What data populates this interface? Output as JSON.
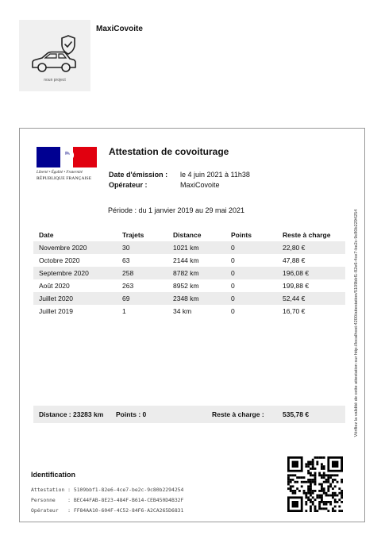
{
  "organization": {
    "name": "MaxiCovoite",
    "logo_icon": "car-shield-icon",
    "logo_caption": "noun project"
  },
  "header": {
    "devise": "Liberté • Égalité • Fraternité",
    "republique": "RÉPUBLIQUE FRANÇAISE",
    "title": "Attestation de covoiturage",
    "emission_label": "Date d'émission :",
    "emission_value": "le 4 juin 2021 à 11h38",
    "operateur_label": "Opérateur :",
    "operateur_value": "MaxiCovoite"
  },
  "periode": "Période : du 1 janvier 2019 au 29 mai 2021",
  "table": {
    "columns": [
      "Date",
      "Trajets",
      "Distance",
      "Points",
      "Reste à charge"
    ],
    "rows": [
      [
        "Novembre 2020",
        "30",
        "1021 km",
        "0",
        "22,80 €"
      ],
      [
        "Octobre 2020",
        "63",
        "2144 km",
        "0",
        "47,88 €"
      ],
      [
        "Septembre 2020",
        "258",
        "8782 km",
        "0",
        "196,08 €"
      ],
      [
        "Août 2020",
        "263",
        "8952 km",
        "0",
        "199,88 €"
      ],
      [
        "Juillet 2020",
        "69",
        "2348 km",
        "0",
        "52,44 €"
      ],
      [
        "Juillet 2019",
        "1",
        "34 km",
        "0",
        "16,70 €"
      ]
    ]
  },
  "totals": {
    "distance": "Distance : 23283 km",
    "points": "Points : 0",
    "reste_label": "Reste à charge :",
    "reste_value": "535,78 €"
  },
  "identification": {
    "title": "Identification",
    "rows": [
      "Attestation : 5109bbf1-82e6-4ce7-be2c-9c80b2294254",
      "Personne    : BEC44FAB-8E23-484F-B614-CEB450D4B32F",
      "Opérateur   : FF84AA10-604F-4C52-84F6-A2CA265D6831"
    ]
  },
  "side_note": "Vérifiez la validité de cette attestation sur http://localhost:4200/attestation/5109bbf1-82e6-4ce7-be2c-9c80b2294254",
  "colors": {
    "bleu": "#000091",
    "rouge": "#e1000f",
    "row_shade": "#ececec"
  }
}
